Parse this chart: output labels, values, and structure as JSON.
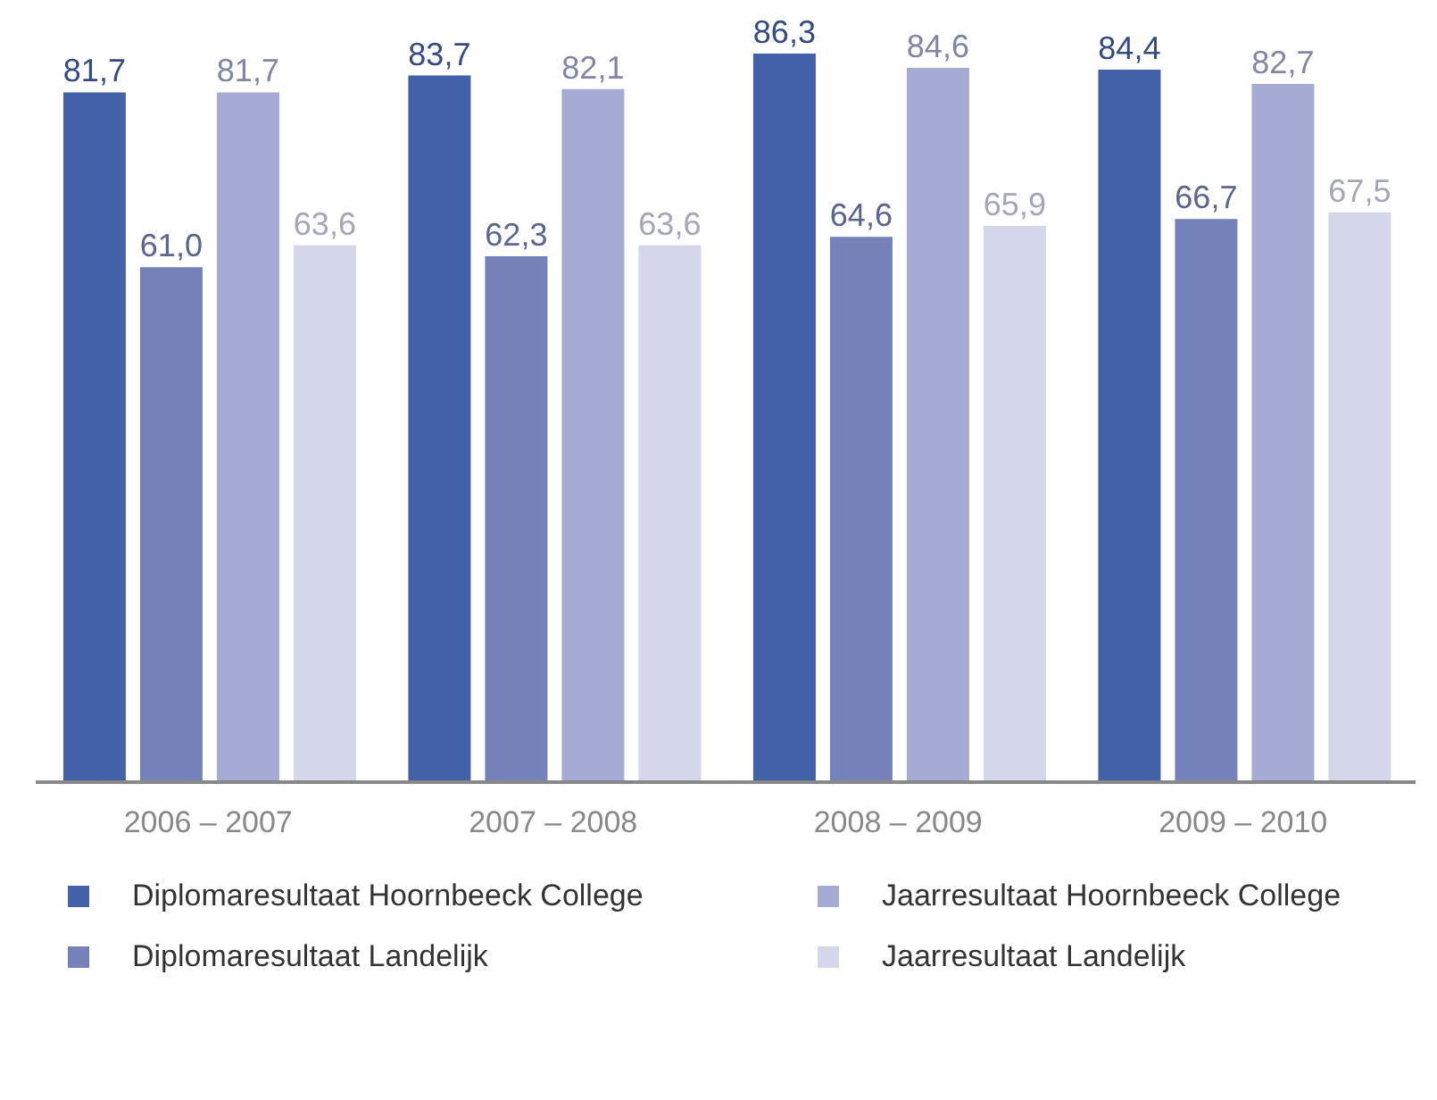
{
  "chart_data": {
    "type": "bar",
    "categories": [
      "2006 – 2007",
      "2007 – 2008",
      "2008 – 2009",
      "2009 – 2010"
    ],
    "series": [
      {
        "name": "Diplomaresultaat Hoornbeeck College",
        "color": "#4361a8",
        "values": [
          81.7,
          83.7,
          86.3,
          84.4
        ],
        "value_labels": [
          "81,7",
          "83,7",
          "86,3",
          "84,4"
        ]
      },
      {
        "name": "Diplomaresultaat Landelijk",
        "color": "#7581b9",
        "values": [
          61.0,
          62.3,
          64.6,
          66.7
        ],
        "value_labels": [
          "61,0",
          "62,3",
          "64,6",
          "66,7"
        ]
      },
      {
        "name": "Jaarresultaat Hoornbeeck College",
        "color": "#a6abd5",
        "values": [
          81.7,
          82.1,
          84.6,
          82.7
        ],
        "value_labels": [
          "81,7",
          "82,1",
          "84,6",
          "82,7"
        ]
      },
      {
        "name": "Jaarresultaat Landelijk",
        "color": "#d4d6e9",
        "values": [
          63.6,
          63.6,
          65.9,
          67.5
        ],
        "value_labels": [
          "63,6",
          "63,6",
          "65,9",
          "67,5"
        ]
      }
    ],
    "grid": false,
    "legend": "bottom"
  }
}
